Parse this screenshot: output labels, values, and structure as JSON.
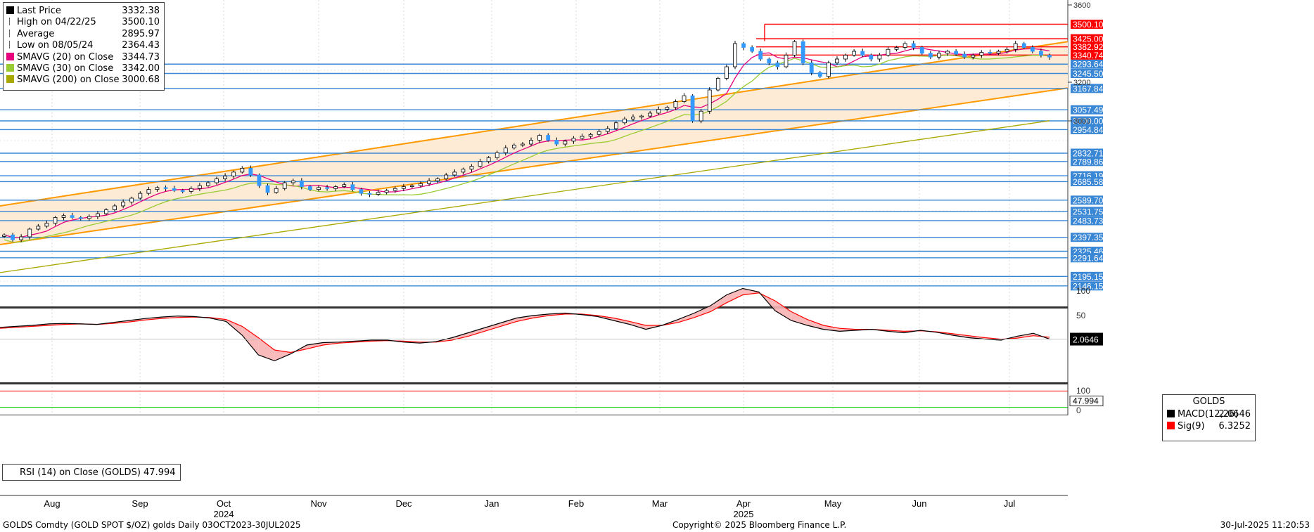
{
  "legend": {
    "rows": [
      {
        "label": "Last Price",
        "value": "3332.38",
        "color": "#000000",
        "marker": "square"
      },
      {
        "label": "High on 04/22/25",
        "value": "3500.10",
        "color": "#666666",
        "marker": "high"
      },
      {
        "label": "Average",
        "value": "2895.97",
        "color": "#666666",
        "marker": "avg"
      },
      {
        "label": "Low on 08/05/24",
        "value": "2364.43",
        "color": "#666666",
        "marker": "low"
      },
      {
        "label": "SMAVG (20)  on Close",
        "value": "3344.73",
        "color": "#e6007e",
        "marker": "square"
      },
      {
        "label": "SMAVG (30)  on Close",
        "value": "3342.00",
        "color": "#99cc33",
        "marker": "square"
      },
      {
        "label": "SMAVG (200)  on Close",
        "value": "3000.68",
        "color": "#a8a800",
        "marker": "square"
      }
    ]
  },
  "macd_legend": {
    "title": "GOLDS",
    "rows": [
      {
        "label": "MACD(12,26)",
        "value": "2.0646",
        "color": "#000000"
      },
      {
        "label": "Sig(9)",
        "value": "6.3252",
        "color": "#ff0000"
      }
    ]
  },
  "rsi_legend": {
    "label": "RSI (14)  on Close (GOLDS) 47.994"
  },
  "footer": {
    "left": "GOLDS Comdty (GOLD SPOT $/OZ) golds  Daily 03OCT2023-30JUL2025",
    "center": "Copyright© 2025 Bloomberg Finance L.P.",
    "right": "30-Jul-2025 11:20:53"
  },
  "colors": {
    "up": "#ffffff",
    "down": "#3399ff",
    "channel": "#ff9900",
    "channel_fill": "#fdebd6",
    "level": "#3a87d6",
    "resistance": "#ff0000",
    "sma20": "#e6007e",
    "sma30": "#99cc33",
    "sma200": "#a8a800",
    "macd": "#000000",
    "signal": "#ff0000",
    "macd_fill": "#f7b3b3",
    "rsi_upper": "#ff0000",
    "rsi_lower": "#00cc00"
  },
  "chart_data": [
    {
      "type": "candlestick",
      "title": "GOLDS Comdty (GOLD SPOT $/OZ)",
      "x_labels": [
        "Aug",
        "Sep",
        "Oct",
        "Nov",
        "Dec",
        "Jan",
        "Feb",
        "Mar",
        "Apr",
        "May",
        "Jun",
        "Jul"
      ],
      "year_labels": [
        {
          "label": "2024",
          "at": "Oct"
        },
        {
          "label": "2025",
          "at": "Apr"
        }
      ],
      "y_ticks": [
        3600,
        3200,
        3000
      ],
      "series": [
        {
          "name": "Last Price",
          "values": [
            2410,
            2385,
            2400,
            2440,
            2455,
            2470,
            2500,
            2510,
            2500,
            2495,
            2505,
            2520,
            2540,
            2560,
            2580,
            2600,
            2625,
            2645,
            2655,
            2650,
            2640,
            2635,
            2650,
            2665,
            2680,
            2700,
            2715,
            2735,
            2755,
            2720,
            2665,
            2630,
            2650,
            2680,
            2690,
            2660,
            2645,
            2655,
            2650,
            2660,
            2670,
            2645,
            2625,
            2620,
            2630,
            2640,
            2650,
            2660,
            2665,
            2675,
            2690,
            2700,
            2720,
            2735,
            2750,
            2765,
            2790,
            2810,
            2835,
            2860,
            2875,
            2880,
            2900,
            2925,
            2900,
            2880,
            2895,
            2910,
            2920,
            2930,
            2945,
            2960,
            2990,
            3010,
            3020,
            3025,
            3040,
            3060,
            3070,
            3100,
            3130,
            3000,
            3050,
            3160,
            3220,
            3280,
            3400,
            3380,
            3360,
            3320,
            3300,
            3280,
            3340,
            3410,
            3300,
            3250,
            3230,
            3300,
            3320,
            3340,
            3360,
            3340,
            3320,
            3340,
            3370,
            3380,
            3400,
            3380,
            3350,
            3330,
            3350,
            3360,
            3345,
            3330,
            3340,
            3355,
            3350,
            3360,
            3370,
            3400,
            3380,
            3360,
            3340,
            3330
          ]
        },
        {
          "name": "SMAVG (20)  on Close",
          "value": 3344.73
        },
        {
          "name": "SMAVG (30)  on Close",
          "value": 3342.0
        },
        {
          "name": "SMAVG (200)  on Close",
          "value": 3000.68
        }
      ],
      "high": {
        "label": "High on 04/22/25",
        "value": 3500.1
      },
      "low": {
        "label": "Low on 08/05/24",
        "value": 2364.43
      },
      "average": 2895.97,
      "last_price": 3332.38,
      "resistance_levels": [
        "3500.10",
        "3425.00",
        "3382.92",
        "3340.74"
      ],
      "support_levels": [
        "3293.64",
        "3245.50",
        "3167.84",
        "3057.49",
        "3000.00",
        "2954.84",
        "2832.71",
        "2789.86",
        "2716.19",
        "2685.58",
        "2589.70",
        "2531.75",
        "2483.73",
        "2397.35",
        "2325.46",
        "2291.64",
        "2195.15",
        "2146.15"
      ],
      "channel": {
        "lower": [
          2360,
          3170
        ],
        "upper": [
          2560,
          3410
        ]
      }
    },
    {
      "type": "line",
      "title": "MACD",
      "y_ticks": [
        100,
        50
      ],
      "last_value_label": "2.0646",
      "series": [
        {
          "name": "MACD(12,26)",
          "values": [
            26,
            28,
            30,
            33,
            34,
            33,
            32,
            36,
            40,
            44,
            47,
            49,
            48,
            45,
            38,
            10,
            -30,
            -42,
            -28,
            -10,
            -5,
            -4,
            -2,
            0,
            0,
            -4,
            -6,
            -3,
            5,
            15,
            25,
            35,
            45,
            50,
            53,
            55,
            52,
            48,
            40,
            32,
            22,
            30,
            42,
            55,
            70,
            92,
            105,
            98,
            60,
            40,
            30,
            22,
            18,
            20,
            22,
            18,
            15,
            20,
            16,
            10,
            5,
            2,
            0,
            8,
            14,
            2
          ]
        },
        {
          "name": "Sig(9)",
          "values": [
            24,
            26,
            28,
            30,
            32,
            33,
            32,
            34,
            37,
            41,
            44,
            46,
            47,
            46,
            42,
            28,
            5,
            -20,
            -25,
            -18,
            -10,
            -6,
            -4,
            -2,
            -1,
            -2,
            -4,
            -4,
            0,
            8,
            18,
            28,
            38,
            45,
            50,
            53,
            53,
            50,
            45,
            38,
            30,
            30,
            36,
            46,
            58,
            76,
            92,
            96,
            80,
            58,
            42,
            30,
            24,
            22,
            22,
            20,
            18,
            19,
            17,
            13,
            9,
            5,
            2,
            4,
            9,
            6
          ]
        }
      ]
    },
    {
      "type": "line",
      "title": "RSI (14)",
      "y_ticks": [
        100,
        0
      ],
      "last_value_label": "47.994",
      "series": [
        {
          "name": "RSI (14)  on Close (GOLDS)",
          "values": [
            47.994
          ]
        }
      ]
    }
  ]
}
